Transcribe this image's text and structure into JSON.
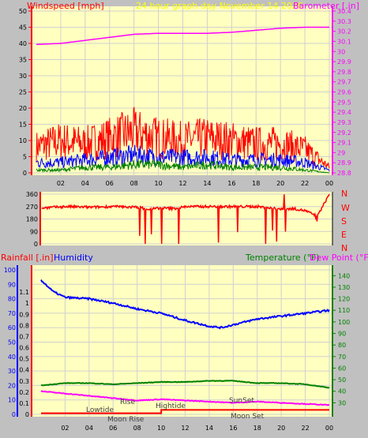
{
  "header": {
    "windspeed_label": "Windspeed [mph]",
    "graph_title": "24 hour graph day   November 14 2020",
    "barometer_label": "Barometer [.in]"
  },
  "middle": {
    "compass": [
      "N",
      "W",
      "S",
      "E",
      "N"
    ]
  },
  "bottom_header": {
    "rainfall_label": "Rainfall [.in]",
    "humidity_label": "Humidity",
    "temperature_label": "Temperature (°F)",
    "dewpoint_label": "Dew Point (°F)"
  },
  "annotations": {
    "lowtide": "Lowtide",
    "rise": "Rise",
    "moon_rise": "Moon Rise",
    "hightide": "Hightide",
    "sunset": "SunSet",
    "moon_set": "Moon Set"
  },
  "colors": {
    "background": "#c0c0c0",
    "plot_bg": "#ffffc0",
    "wind": "#ff0000",
    "gust": "#ff0000",
    "wind_avg": "#0000ff",
    "wind_low": "#008000",
    "barometer": "#ff00ff",
    "direction": "#ff0000",
    "humidity": "#0000ff",
    "temperature": "#008000",
    "dewpoint": "#ff00ff",
    "rainfall": "#ff0000",
    "grid": "#d0d0d0"
  },
  "chart_data": [
    {
      "type": "line",
      "title": "24 hour graph day   November 14 2020",
      "x_ticks": [
        "02",
        "04",
        "06",
        "08",
        "10",
        "12",
        "14",
        "16",
        "18",
        "20",
        "22",
        "00"
      ],
      "x_range": [
        0,
        24
      ],
      "left_axis": {
        "label": "Windspeed [mph]",
        "range": [
          0,
          50
        ],
        "ticks": [
          "0",
          "5",
          "10",
          "15",
          "20",
          "25",
          "30",
          "35",
          "40",
          "45",
          "50"
        ]
      },
      "right_axis": {
        "label": "Barometer [.in]",
        "range": [
          28.8,
          30.4
        ],
        "ticks": [
          "28.8",
          "28.9",
          "29",
          "29.1",
          "29.2",
          "29.3",
          "29.4",
          "29.5",
          "29.6",
          "29.7",
          "29.8",
          "29.9",
          "30",
          "30.1",
          "30.2",
          "30.3",
          "30.4"
        ]
      },
      "series": [
        {
          "name": "Barometer",
          "axis": "right",
          "x": [
            0,
            2,
            4,
            6,
            8,
            10,
            12,
            14,
            16,
            18,
            20,
            22,
            24
          ],
          "values": [
            30.07,
            30.08,
            30.11,
            30.14,
            30.17,
            30.18,
            30.18,
            30.18,
            30.19,
            30.21,
            30.23,
            30.24,
            30.24
          ]
        },
        {
          "name": "Wind",
          "axis": "left",
          "x": [
            0,
            2,
            4,
            6,
            8,
            10,
            12,
            14,
            16,
            18,
            20,
            22,
            24
          ],
          "values": [
            4,
            4,
            5,
            6,
            7,
            6,
            6,
            6,
            5,
            5,
            5,
            4,
            1
          ]
        },
        {
          "name": "Gust",
          "axis": "left",
          "x": [
            0,
            2,
            4,
            6,
            8,
            10,
            12,
            14,
            16,
            18,
            20,
            22,
            24
          ],
          "values": [
            9,
            11,
            10,
            12,
            14,
            12,
            11,
            12,
            11,
            10,
            10,
            8,
            2
          ]
        },
        {
          "name": "Low",
          "axis": "left",
          "x": [
            0,
            2,
            4,
            6,
            8,
            10,
            12,
            14,
            16,
            18,
            20,
            22,
            24
          ],
          "values": [
            1,
            1,
            2,
            2,
            3,
            3,
            2,
            3,
            2,
            2,
            2,
            1,
            0
          ]
        }
      ]
    },
    {
      "type": "scatter",
      "title": "",
      "x_range": [
        0,
        24
      ],
      "left_axis": {
        "range": [
          0,
          360
        ],
        "ticks": [
          "0",
          "90",
          "180",
          "270",
          "360"
        ]
      },
      "series": [
        {
          "name": "Direction",
          "x": [
            0,
            2,
            4,
            6,
            8,
            9,
            10,
            11,
            12,
            14,
            16,
            18,
            19,
            20,
            21,
            22,
            23,
            24
          ],
          "values": [
            260,
            270,
            265,
            270,
            265,
            250,
            260,
            255,
            270,
            270,
            270,
            270,
            260,
            250,
            255,
            240,
            200,
            360
          ]
        }
      ]
    },
    {
      "type": "line",
      "title": "",
      "x_ticks": [
        "02",
        "04",
        "06",
        "08",
        "10",
        "12",
        "14",
        "16",
        "18",
        "20",
        "22",
        "00"
      ],
      "x_range": [
        0,
        24
      ],
      "left_axis": {
        "label": "Humidity",
        "range": [
          0,
          100
        ],
        "ticks": [
          "0",
          "10",
          "20",
          "30",
          "40",
          "50",
          "60",
          "70",
          "80",
          "90",
          "100"
        ]
      },
      "left_inner_axis": {
        "label": "Rainfall [.in]",
        "range": [
          0,
          1.2
        ],
        "ticks": [
          "0",
          "0.1",
          "0.2",
          "0.3",
          "0.4",
          "0.5",
          "0.6",
          "0.7",
          "0.8",
          "0.9",
          "1",
          "1.1"
        ]
      },
      "right_axis": {
        "label": "Temperature (°F)",
        "range": [
          20,
          145
        ],
        "ticks": [
          "30",
          "40",
          "50",
          "60",
          "70",
          "80",
          "90",
          "100",
          "110",
          "120",
          "130",
          "140"
        ]
      },
      "series": [
        {
          "name": "Humidity",
          "axis": "left",
          "x": [
            0,
            1,
            2,
            4,
            6,
            8,
            10,
            12,
            14,
            15,
            16,
            18,
            20,
            22,
            24
          ],
          "values": [
            93,
            85,
            81,
            80,
            77,
            73,
            70,
            65,
            61,
            60,
            62,
            66,
            68,
            70,
            72
          ]
        },
        {
          "name": "Temperature",
          "axis": "right",
          "x": [
            0,
            2,
            4,
            6,
            8,
            10,
            12,
            14,
            16,
            18,
            20,
            22,
            24
          ],
          "values": [
            45,
            47,
            47,
            46,
            47,
            48,
            48,
            49,
            49,
            47,
            47,
            46,
            43
          ]
        },
        {
          "name": "Dew Point",
          "axis": "right",
          "x": [
            0,
            2,
            4,
            6,
            8,
            10,
            12,
            14,
            16,
            18,
            20,
            22,
            24
          ],
          "values": [
            40,
            38,
            36,
            34,
            32,
            33,
            32,
            31,
            30,
            31,
            30,
            29,
            28
          ]
        },
        {
          "name": "Rainfall",
          "axis": "left_inner",
          "x": [
            0,
            10,
            10.01,
            24
          ],
          "values": [
            0.01,
            0.01,
            0.04,
            0.04
          ]
        }
      ]
    }
  ]
}
